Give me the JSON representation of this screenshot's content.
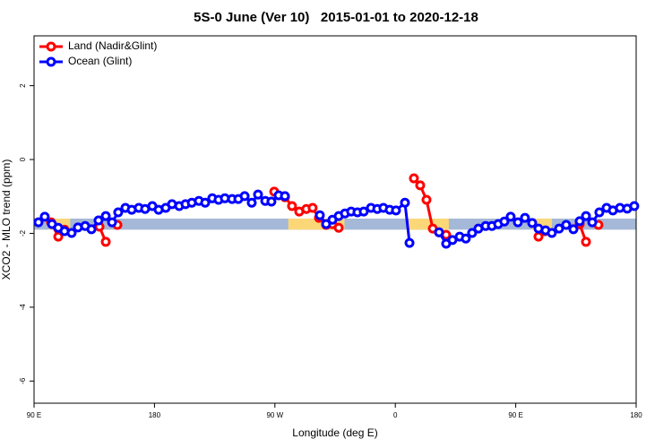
{
  "chart_data": {
    "type": "line",
    "title": "5S-0 June (Ver 10)   2015-01-01 to 2020-12-18",
    "xlabel": "Longitude (deg E)",
    "ylabel": "XCO2 - MLO trend (ppm)",
    "xlim": [
      90,
      540
    ],
    "xticks": [
      {
        "value": 90,
        "label": "90 E"
      },
      {
        "value": 180,
        "label": "180"
      },
      {
        "value": 270,
        "label": "90 W"
      },
      {
        "value": 360,
        "label": "0"
      },
      {
        "value": 450,
        "label": "90 E"
      },
      {
        "value": 540,
        "label": "180"
      }
    ],
    "ylim": [
      -6.6,
      3.35
    ],
    "yticks": [
      -6,
      -4,
      -2,
      0,
      2
    ],
    "legend": "topleft",
    "band_ylim": [
      -1.9,
      -1.6
    ],
    "bands": [
      {
        "xlim": [
          90,
          540
        ],
        "color": "#a5b8d8"
      },
      {
        "xlim": [
          101,
          117
        ],
        "color": "#fbd778"
      },
      {
        "xlim": [
          280,
          322
        ],
        "color": "#fbd778"
      },
      {
        "xlim": [
          370,
          400
        ],
        "color": "#fbd778"
      },
      {
        "xlim": [
          462,
          477
        ],
        "color": "#fbd778"
      }
    ],
    "series": [
      {
        "name": "Land (Nadir&Glint)",
        "color": "#ff0000",
        "x": [
          102.7,
          108.1,
          112.8,
          null,
          138.9,
          143.6,
          null,
          152.3,
          null,
          269.5,
          277.5,
          282.8,
          288.2,
          293.5,
          298.2,
          302.9,
          308.3,
          313.0,
          317.7,
          null,
          373.9,
          378.6,
          383.3,
          388.0,
          392.7,
          398.0,
          null,
          467.0,
          471.7,
          null,
          497.8,
          502.5,
          null,
          511.8
        ],
        "values": [
          -1.7,
          -2.09,
          -1.9,
          null,
          -1.82,
          -2.23,
          null,
          -1.77,
          null,
          -0.87,
          -1.02,
          -1.26,
          -1.41,
          -1.34,
          -1.31,
          -1.58,
          -1.77,
          -1.75,
          -1.85,
          null,
          -0.51,
          -0.7,
          -1.09,
          -1.87,
          -1.97,
          -2.04,
          null,
          -2.09,
          -1.94,
          null,
          -1.75,
          -2.23,
          null,
          -1.77
        ]
      },
      {
        "name": "Ocean (Glint)",
        "color": "#0000ff",
        "x": [
          93.3,
          98.0,
          103.4,
          108.1,
          112.8,
          118.1,
          122.8,
          128.2,
          132.9,
          138.2,
          143.6,
          148.3,
          152.9,
          158.3,
          163.0,
          168.3,
          173.0,
          178.4,
          183.1,
          188.4,
          193.1,
          198.5,
          203.2,
          207.9,
          213.2,
          217.9,
          223.2,
          227.9,
          232.6,
          238.0,
          242.7,
          247.4,
          252.7,
          257.4,
          262.8,
          267.4,
          272.8,
          277.5,
          null,
          303.6,
          308.3,
          313.0,
          317.7,
          322.4,
          327.0,
          331.7,
          336.4,
          341.8,
          346.5,
          351.1,
          355.8,
          360.5,
          367.2,
          370.6,
          null,
          392.7,
          398.0,
          402.7,
          408.1,
          412.7,
          417.4,
          422.1,
          427.5,
          432.2,
          436.9,
          441.5,
          446.2,
          451.6,
          456.9,
          462.3,
          467.0,
          472.3,
          477.0,
          482.4,
          487.7,
          493.1,
          497.8,
          502.5,
          507.2,
          512.5,
          517.9,
          522.6,
          527.9,
          533.3,
          538.6
        ],
        "values": [
          -1.7,
          -1.55,
          -1.75,
          -1.85,
          -1.94,
          -1.99,
          -1.84,
          -1.8,
          -1.89,
          -1.65,
          -1.53,
          -1.7,
          -1.43,
          -1.31,
          -1.36,
          -1.31,
          -1.34,
          -1.26,
          -1.36,
          -1.31,
          -1.21,
          -1.26,
          -1.21,
          -1.17,
          -1.12,
          -1.17,
          -1.05,
          -1.09,
          -1.05,
          -1.07,
          -1.07,
          -0.99,
          -1.17,
          -0.95,
          -1.12,
          -1.14,
          -0.97,
          -0.99,
          null,
          -1.51,
          -1.75,
          -1.63,
          -1.53,
          -1.46,
          -1.41,
          -1.43,
          -1.41,
          -1.31,
          -1.34,
          -1.31,
          -1.36,
          -1.38,
          -1.17,
          -2.26,
          null,
          -1.97,
          -2.28,
          -2.18,
          -2.09,
          -2.14,
          -1.99,
          -1.87,
          -1.8,
          -1.8,
          -1.75,
          -1.68,
          -1.55,
          -1.7,
          -1.58,
          -1.72,
          -1.87,
          -1.92,
          -1.99,
          -1.87,
          -1.77,
          -1.89,
          -1.67,
          -1.53,
          -1.7,
          -1.43,
          -1.31,
          -1.38,
          -1.31,
          -1.33,
          -1.26
        ]
      }
    ]
  }
}
